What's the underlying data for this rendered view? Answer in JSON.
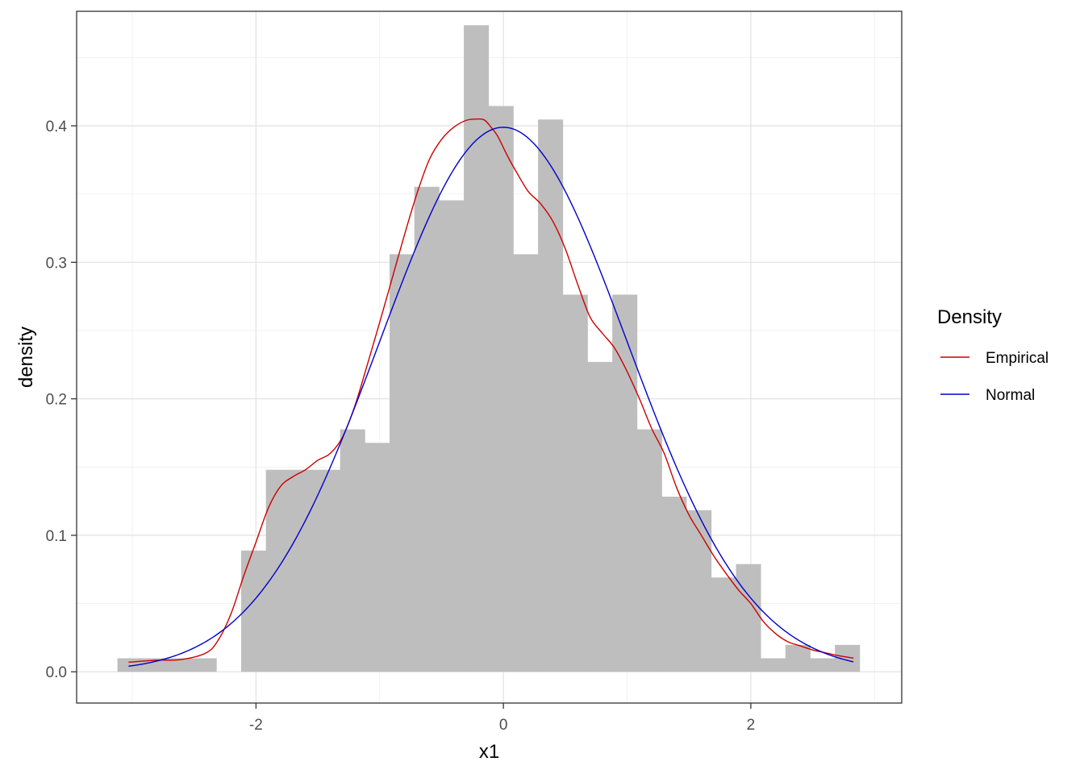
{
  "chart_data": {
    "type": "histogram",
    "xlabel": "x1",
    "ylabel": "density",
    "xlim": [
      -3.45,
      3.22
    ],
    "ylim": [
      -0.0229,
      0.4839
    ],
    "x_ticks": [
      -2,
      0,
      2
    ],
    "x_tick_labels": [
      "-2",
      "0",
      "2"
    ],
    "y_ticks": [
      0.0,
      0.1,
      0.2,
      0.3,
      0.4
    ],
    "y_tick_labels": [
      "0.0",
      "0.1",
      "0.2",
      "0.3",
      "0.4"
    ],
    "grid": true,
    "bar_color": "#bebebe",
    "bin_width": 0.2,
    "bins": [
      {
        "x0": -3.12,
        "x1": -2.92,
        "density": 0.0099
      },
      {
        "x0": -2.92,
        "x1": -2.72,
        "density": 0.0099
      },
      {
        "x0": -2.72,
        "x1": -2.52,
        "density": 0.0099
      },
      {
        "x0": -2.52,
        "x1": -2.32,
        "density": 0.0099
      },
      {
        "x0": -2.32,
        "x1": -2.12,
        "density": 0.0
      },
      {
        "x0": -2.12,
        "x1": -1.92,
        "density": 0.0888
      },
      {
        "x0": -1.92,
        "x1": -1.72,
        "density": 0.148
      },
      {
        "x0": -1.72,
        "x1": -1.52,
        "density": 0.148
      },
      {
        "x0": -1.52,
        "x1": -1.32,
        "density": 0.148
      },
      {
        "x0": -1.32,
        "x1": -1.12,
        "density": 0.1776
      },
      {
        "x0": -1.12,
        "x1": -0.92,
        "density": 0.1677
      },
      {
        "x0": -0.92,
        "x1": -0.72,
        "density": 0.3059
      },
      {
        "x0": -0.72,
        "x1": -0.52,
        "density": 0.3553
      },
      {
        "x0": -0.52,
        "x1": -0.32,
        "density": 0.3454
      },
      {
        "x0": -0.32,
        "x1": -0.12,
        "density": 0.4737
      },
      {
        "x0": -0.12,
        "x1": 0.08,
        "density": 0.4145
      },
      {
        "x0": 0.08,
        "x1": 0.28,
        "density": 0.3059
      },
      {
        "x0": 0.28,
        "x1": 0.48,
        "density": 0.4046
      },
      {
        "x0": 0.48,
        "x1": 0.68,
        "density": 0.2763
      },
      {
        "x0": 0.68,
        "x1": 0.88,
        "density": 0.227
      },
      {
        "x0": 0.88,
        "x1": 1.08,
        "density": 0.2763
      },
      {
        "x0": 1.08,
        "x1": 1.28,
        "density": 0.1776
      },
      {
        "x0": 1.28,
        "x1": 1.48,
        "density": 0.1283
      },
      {
        "x0": 1.48,
        "x1": 1.68,
        "density": 0.1184
      },
      {
        "x0": 1.68,
        "x1": 1.88,
        "density": 0.0691
      },
      {
        "x0": 1.88,
        "x1": 2.08,
        "density": 0.0789
      },
      {
        "x0": 2.08,
        "x1": 2.28,
        "density": 0.0099
      },
      {
        "x0": 2.28,
        "x1": 2.48,
        "density": 0.0197
      },
      {
        "x0": 2.48,
        "x1": 2.68,
        "density": 0.0099
      },
      {
        "x0": 2.68,
        "x1": 2.88,
        "density": 0.0197
      }
    ],
    "series": [
      {
        "name": "Empirical",
        "color": "#cc0000",
        "x": [
          -3.03,
          -2.8,
          -2.6,
          -2.4,
          -2.3,
          -2.2,
          -2.1,
          -2.0,
          -1.9,
          -1.8,
          -1.7,
          -1.6,
          -1.5,
          -1.4,
          -1.3,
          -1.2,
          -1.1,
          -1.0,
          -0.9,
          -0.8,
          -0.7,
          -0.6,
          -0.5,
          -0.4,
          -0.3,
          -0.2,
          -0.15,
          -0.1,
          -0.05,
          0.0,
          0.05,
          0.1,
          0.2,
          0.3,
          0.4,
          0.5,
          0.6,
          0.7,
          0.8,
          0.9,
          1.0,
          1.1,
          1.2,
          1.3,
          1.4,
          1.5,
          1.6,
          1.7,
          1.8,
          1.9,
          2.0,
          2.1,
          2.2,
          2.3,
          2.4,
          2.5,
          2.6,
          2.7,
          2.83
        ],
        "y": [
          0.007,
          0.0085,
          0.009,
          0.014,
          0.024,
          0.043,
          0.07,
          0.095,
          0.12,
          0.136,
          0.143,
          0.148,
          0.155,
          0.16,
          0.172,
          0.195,
          0.225,
          0.256,
          0.288,
          0.32,
          0.35,
          0.375,
          0.39,
          0.399,
          0.404,
          0.405,
          0.404,
          0.399,
          0.393,
          0.384,
          0.375,
          0.367,
          0.352,
          0.343,
          0.33,
          0.31,
          0.284,
          0.26,
          0.248,
          0.237,
          0.22,
          0.2,
          0.178,
          0.16,
          0.135,
          0.115,
          0.1,
          0.085,
          0.072,
          0.06,
          0.05,
          0.037,
          0.028,
          0.022,
          0.019,
          0.016,
          0.014,
          0.012,
          0.01
        ]
      },
      {
        "name": "Normal",
        "color": "#0000cc",
        "curve": "normal",
        "mean": 0,
        "sd": 1,
        "x_range": [
          -3.03,
          2.83
        ]
      }
    ],
    "legend": {
      "title": "Density",
      "position": "right",
      "entries": [
        {
          "label": "Empirical",
          "color": "#cc0000"
        },
        {
          "label": "Normal",
          "color": "#0000cc"
        }
      ]
    }
  }
}
